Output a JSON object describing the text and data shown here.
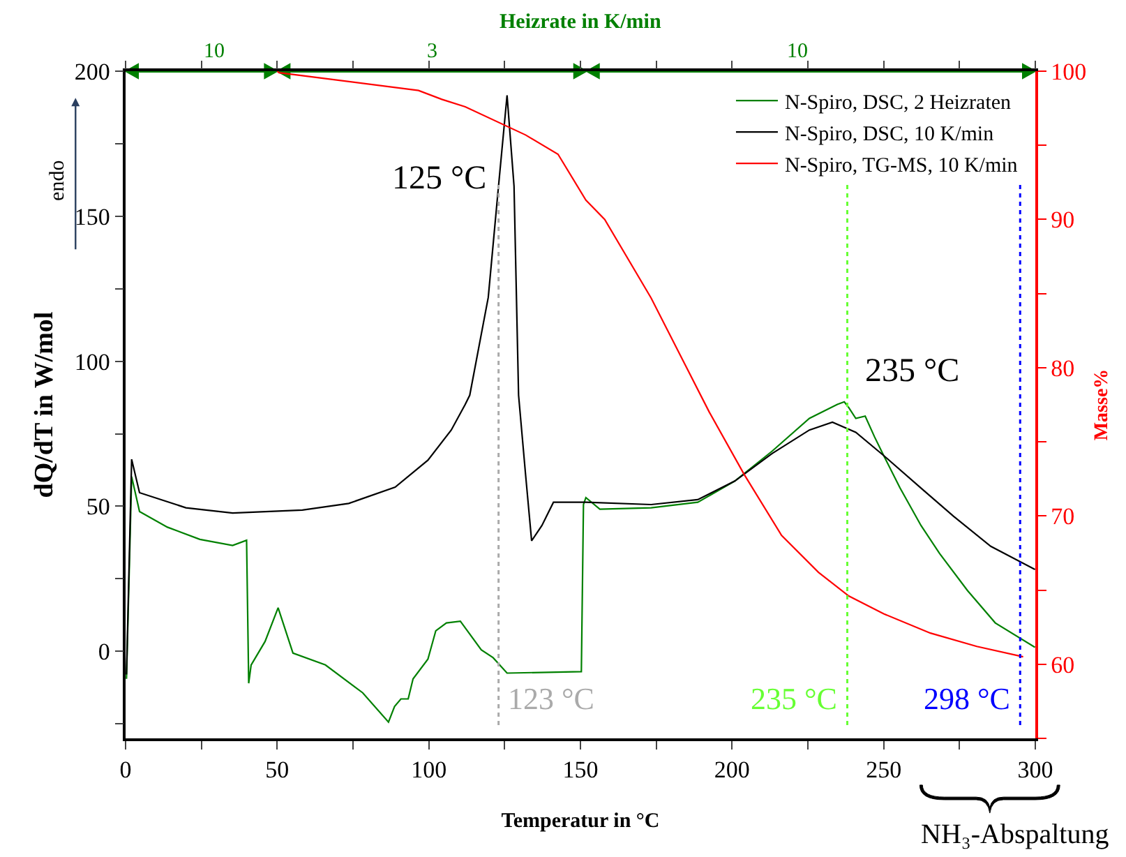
{
  "chart_data": {
    "type": "line",
    "xlabel": "Temperatur in °C",
    "ylabel": "dQ/dT in W/mol",
    "y2label": "Masse%",
    "xlim": [
      0,
      300
    ],
    "xticks": [
      0,
      {
        "value": 25,
        "label": null
      },
      50,
      {
        "value": 75,
        "label": null
      },
      100,
      {
        "value": 125,
        "label": null
      },
      150,
      {
        "value": 175,
        "label": null
      },
      200,
      {
        "value": 225,
        "label": null
      },
      250,
      {
        "value": 275,
        "label": null
      },
      300
    ],
    "ylim": [
      -30,
      200
    ],
    "yticks": [
      {
        "value": -25,
        "label": null
      },
      0,
      {
        "value": 25,
        "label": null
      },
      50,
      {
        "value": 75,
        "label": null
      },
      100,
      {
        "value": 125,
        "label": null
      },
      150,
      {
        "value": 175,
        "label": null
      },
      200
    ],
    "y2lim": [
      55,
      100
    ],
    "y2ticks": [
      {
        "value": 55,
        "label": null
      },
      60,
      {
        "value": 65,
        "label": null
      },
      70,
      {
        "value": 75,
        "label": null
      },
      80,
      {
        "value": 85,
        "label": null
      },
      90,
      {
        "value": 95,
        "label": null
      },
      100
    ],
    "series": [
      {
        "name": "N-Spiro, DSC, 2 Heizraten",
        "color": "#008000",
        "x": [
          0.3,
          2,
          4.6,
          13.8,
          24.5,
          35.3,
          39.9,
          40.6,
          41.4,
          46,
          50.3,
          55.2,
          65.9,
          78.2,
          86.7,
          88.7,
          90.8,
          93.2,
          94.8,
          99.7,
          102.3,
          105.8,
          110.4,
          117.3,
          121.2,
          125.8,
          150.3,
          151,
          151.8,
          156.4,
          173.3,
          188.7,
          200.9,
          213.2,
          225.5,
          234.7,
          237,
          238.5,
          240.8,
          243.9,
          247,
          250,
          255.4,
          262.3,
          268.4,
          277.6,
          286.8,
          299.9
        ],
        "values": [
          -9.5,
          60.2,
          48.2,
          42.8,
          38.6,
          36.5,
          38.3,
          -11,
          -4.7,
          3.4,
          15,
          -0.6,
          -4.7,
          -14.3,
          -24.4,
          -19,
          -16.4,
          -16.4,
          -9.5,
          -2.7,
          7.1,
          9.8,
          10.4,
          0.5,
          -2.2,
          -7.5,
          -7,
          50.6,
          53,
          49,
          49.5,
          51.4,
          58.7,
          69,
          80.3,
          85.1,
          86,
          84,
          80.3,
          81.1,
          73.9,
          67.5,
          56.3,
          43.4,
          33.8,
          21,
          9.8,
          1.4
        ]
      },
      {
        "name": "N-Spiro, DSC, 10 K/min",
        "color": "#000000",
        "x": [
          0.3,
          2,
          4.6,
          19.9,
          35.3,
          58.3,
          73.6,
          88.9,
          99.7,
          107.4,
          112,
          113.5,
          119.6,
          122.7,
          125.8,
          128.1,
          129.6,
          131.9,
          133.9,
          137.3,
          141.1,
          151.8,
          173.3,
          188.7,
          200.9,
          213.2,
          225.5,
          233.1,
          240.8,
          250,
          262.3,
          273,
          285.3,
          299.9
        ],
        "values": [
          -8,
          66.2,
          54.7,
          49.5,
          47.7,
          48.7,
          51,
          56.6,
          65.9,
          76.3,
          85.1,
          88.3,
          122,
          157.2,
          191.7,
          160.4,
          88.3,
          61,
          38.1,
          43.4,
          51.4,
          51.4,
          50.6,
          52.3,
          58.7,
          68.2,
          76.3,
          79,
          75.5,
          67.5,
          56.3,
          46.6,
          36.2,
          28.2
        ]
      },
      {
        "name": "N-Spiro, TG-MS, 10 K/min",
        "color": "#ff0000",
        "axis": "y2",
        "x": [
          50,
          50.6,
          96.6,
          104.3,
          112,
          131.9,
          142.6,
          151.8,
          158,
          173.3,
          192.5,
          204,
          216.3,
          228.5,
          238.5,
          250,
          265.4,
          280.7,
          296
        ],
        "values": [
          100,
          99.9,
          98.7,
          98.1,
          97.6,
          95.7,
          94.4,
          91.3,
          90,
          84.7,
          77,
          72.8,
          68.7,
          66.2,
          64.6,
          63.4,
          62.1,
          61.2,
          60.5
        ]
      }
    ],
    "ref_lines": [
      {
        "axis": "x",
        "value": 123,
        "label": "123 °C",
        "color": "#aaaaaa",
        "line_style": "dotted"
      },
      {
        "axis": "x",
        "value": 238,
        "label": "235 °C",
        "color": "#66ff33",
        "line_style": "dotted"
      },
      {
        "axis": "x",
        "value": 295,
        "label": "298 °C",
        "color": "#0000ff",
        "line_style": "dotted"
      }
    ],
    "annotations": [
      "125 °C",
      "235 °C",
      "endo",
      "NH₃-Abspaltung",
      "Heizrate in K/min",
      "10",
      "3",
      "10"
    ],
    "legend": "top right",
    "grid": false,
    "marker": "none",
    "line_style": "solid"
  }
}
